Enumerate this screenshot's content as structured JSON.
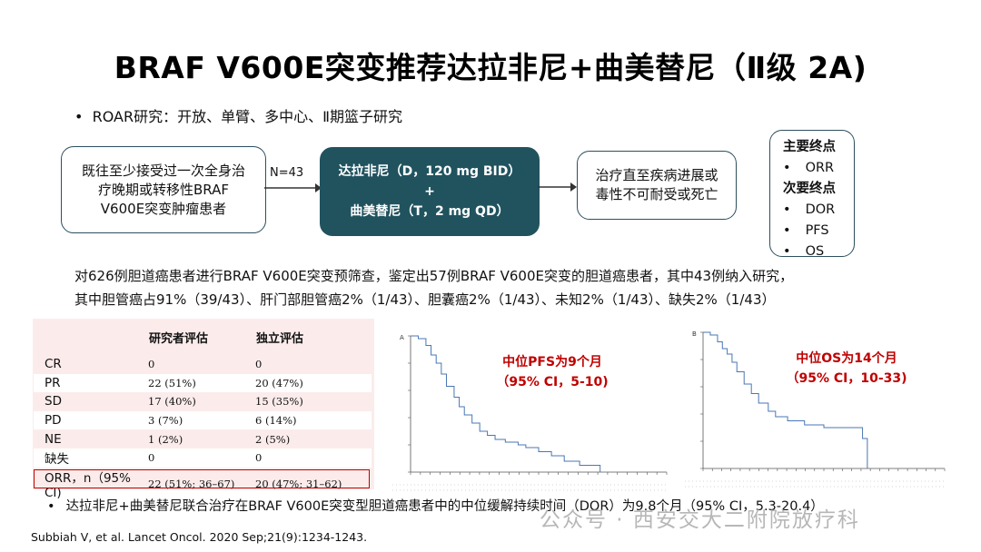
{
  "title": "BRAF V600E突变推荐达拉非尼+曲美替尼（Ⅱ级 2A)",
  "study_bullet": "ROAR研究：开放、单臂、多中心、Ⅱ期篮子研究",
  "flow": {
    "patients": [
      "既往至少接受过一次全身治",
      "疗晚期或转移性BRAF",
      "V600E突变肿瘤患者"
    ],
    "n_label": "N=43",
    "treatment": [
      "达拉非尼（D，120 mg BID）",
      "+",
      "曲美替尼（T，2 mg QD）"
    ],
    "until": [
      "治疗直至疾病进展或",
      "毒性不可耐受或死亡"
    ]
  },
  "endpoints": {
    "primary_head": "主要终点",
    "primary": [
      "ORR"
    ],
    "secondary_head": "次要终点",
    "secondary": [
      "DOR",
      "PFS",
      "OS"
    ]
  },
  "description": [
    "对626例胆道癌患者进行BRAF V600E突变预筛查，鉴定出57例BRAF V600E突变的胆道癌患者，其中43例纳入研究，",
    "其中胆管癌占91%（39/43）、肝门部胆管癌2%（1/43）、胆囊癌2%（1/43）、未知2%（1/43）、缺失2%（1/43）"
  ],
  "response_table": {
    "headers": [
      "",
      "研究者评估",
      "独立评估"
    ],
    "rows": [
      [
        "CR",
        "0",
        "0"
      ],
      [
        "PR",
        "22 (51%)",
        "20 (47%)"
      ],
      [
        "SD",
        "17 (40%)",
        "15 (35%)"
      ],
      [
        "PD",
        "3 (7%)",
        "6 (14%)"
      ],
      [
        "NE",
        "1 (2%)",
        "2 (5%)"
      ],
      [
        "缺失",
        "0",
        "0"
      ],
      [
        "ORR，n（95% CI)",
        "22 (51%; 36–67)",
        "20 (47%; 31–62)"
      ]
    ]
  },
  "km_pfs": {
    "panel": "A",
    "headline": "中位PFS为9个月",
    "ci": "（95% CI，5-10)",
    "color": "#4a77b4"
  },
  "km_os": {
    "panel": "B",
    "headline": "中位OS为14个月",
    "ci": "（95% CI，10-33)",
    "color": "#4a77b4"
  },
  "note": "达拉非尼+曲美替尼联合治疗在BRAF V600E突变型胆道癌患者中的中位缓解持续时间（DOR）为9.8个月（95% CI，5.3-20.4）",
  "citation": "Subbiah V, et al. Lancet Oncol. 2020 Sep;21(9):1234-1243.",
  "watermark": "公众号 · 西安交大二附院放疗科",
  "highlight_color": "#c00000"
}
